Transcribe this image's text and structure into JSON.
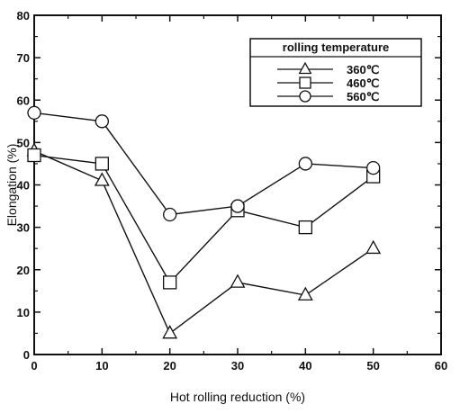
{
  "chart_data": {
    "type": "line",
    "xlabel": "Hot rolling reduction (%)",
    "ylabel": "Elongation (%)",
    "xlim": [
      0,
      60
    ],
    "ylim": [
      0,
      80
    ],
    "xticks": [
      0,
      10,
      20,
      30,
      40,
      50,
      60
    ],
    "yticks": [
      0,
      10,
      20,
      30,
      40,
      50,
      60,
      70,
      80
    ],
    "grid": false,
    "legend": {
      "title": "rolling temperature",
      "placement": "top-right"
    },
    "x": [
      0,
      10,
      20,
      30,
      40,
      50
    ],
    "series": [
      {
        "name": "360℃",
        "marker": "triangle",
        "values": [
          48,
          41,
          5,
          17,
          14,
          25
        ]
      },
      {
        "name": "460℃",
        "marker": "square",
        "values": [
          47,
          45,
          17,
          34,
          30,
          42
        ]
      },
      {
        "name": "560℃",
        "marker": "circle",
        "values": [
          57,
          55,
          33,
          35,
          45,
          44
        ]
      }
    ],
    "colors": {
      "line": "#111111",
      "marker_fill": "#ffffff"
    }
  }
}
